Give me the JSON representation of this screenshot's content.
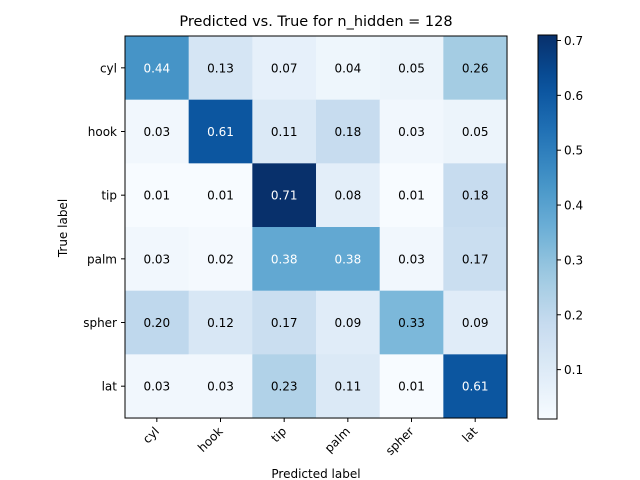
{
  "chart_data": {
    "type": "heatmap",
    "title": "Predicted vs. True for n_hidden = 128",
    "xlabel": "Predicted label",
    "ylabel": "True label",
    "x_categories": [
      "cyl",
      "hook",
      "tip",
      "palm",
      "spher",
      "lat"
    ],
    "y_categories": [
      "cyl",
      "hook",
      "tip",
      "palm",
      "spher",
      "lat"
    ],
    "values": [
      [
        0.44,
        0.13,
        0.07,
        0.04,
        0.05,
        0.26
      ],
      [
        0.03,
        0.61,
        0.11,
        0.18,
        0.03,
        0.05
      ],
      [
        0.01,
        0.01,
        0.71,
        0.08,
        0.01,
        0.18
      ],
      [
        0.03,
        0.02,
        0.38,
        0.38,
        0.03,
        0.17
      ],
      [
        0.2,
        0.12,
        0.17,
        0.09,
        0.33,
        0.09
      ],
      [
        0.03,
        0.03,
        0.23,
        0.11,
        0.01,
        0.61
      ]
    ],
    "value_format": "0.00",
    "colormap": "Blues",
    "color_range": [
      0.01,
      0.71
    ],
    "colorbar": {
      "ticks": [
        0.1,
        0.2,
        0.3,
        0.4,
        0.5,
        0.6,
        0.7
      ],
      "tick_labels": [
        "0.1",
        "0.2",
        "0.3",
        "0.4",
        "0.5",
        "0.6",
        "0.7"
      ]
    },
    "text_color_light": "#ffffff",
    "text_color_dark": "#000000",
    "x_tick_rotation": "45°"
  }
}
